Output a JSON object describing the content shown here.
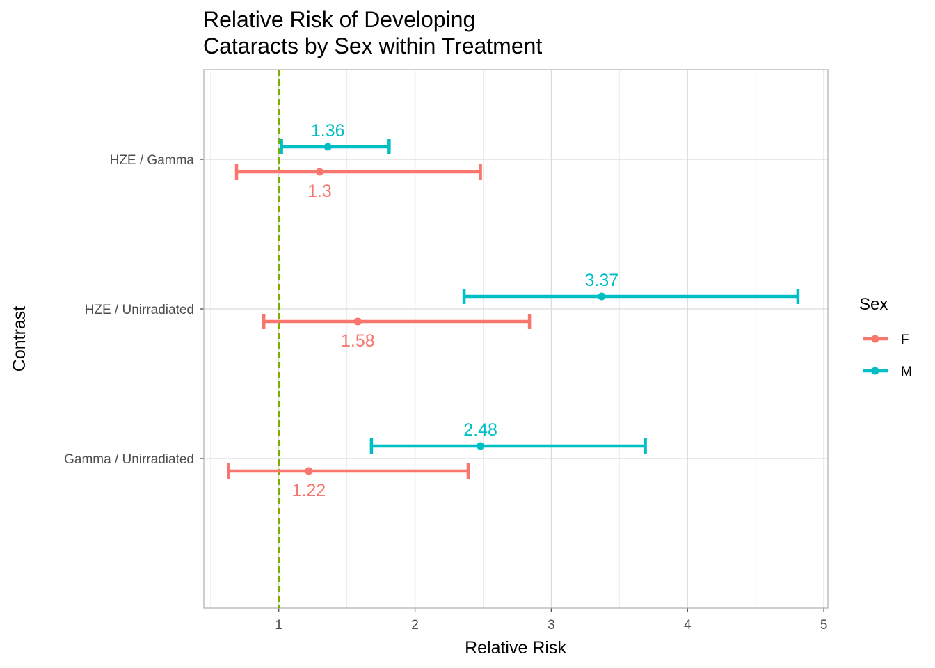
{
  "chart_data": {
    "type": "errorbar",
    "title_lines": [
      "Relative Risk of Developing",
      "Cataracts by Sex within Treatment"
    ],
    "xlabel": "Relative Risk",
    "ylabel": "Contrast",
    "xlim": [
      0.45,
      5.03
    ],
    "x_ticks": [
      1,
      2,
      3,
      4,
      5
    ],
    "x_tick_labels": [
      "1",
      "2",
      "3",
      "4",
      "5"
    ],
    "categories": [
      "HZE / Gamma",
      "HZE / Unirradiated",
      "Gamma / Unirradiated"
    ],
    "reference_line": {
      "x": 1,
      "color": "#7CAE00",
      "style": "dashed"
    },
    "legend": {
      "title": "Sex",
      "position": "right"
    },
    "grid": true,
    "series": [
      {
        "name": "F",
        "color": "#F8766D",
        "points": [
          {
            "category": "HZE / Gamma",
            "estimate": 1.3,
            "lower": 0.69,
            "upper": 2.48,
            "label": "1.3"
          },
          {
            "category": "HZE / Unirradiated",
            "estimate": 1.58,
            "lower": 0.89,
            "upper": 2.84,
            "label": "1.58"
          },
          {
            "category": "Gamma / Unirradiated",
            "estimate": 1.22,
            "lower": 0.63,
            "upper": 2.39,
            "label": "1.22"
          }
        ]
      },
      {
        "name": "M",
        "color": "#00BFC4",
        "points": [
          {
            "category": "HZE / Gamma",
            "estimate": 1.36,
            "lower": 1.02,
            "upper": 1.81,
            "label": "1.36"
          },
          {
            "category": "HZE / Unirradiated",
            "estimate": 3.37,
            "lower": 2.36,
            "upper": 4.81,
            "label": "3.37"
          },
          {
            "category": "Gamma / Unirradiated",
            "estimate": 2.48,
            "lower": 1.68,
            "upper": 3.69,
            "label": "2.48"
          }
        ]
      }
    ]
  }
}
